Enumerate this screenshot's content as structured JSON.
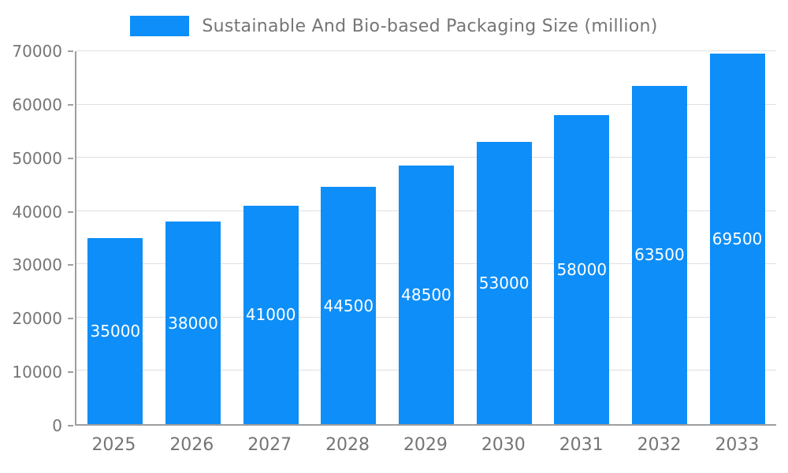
{
  "chart_data": {
    "type": "bar",
    "title": "Sustainable And Bio-based Packaging Size (million)",
    "categories": [
      "2025",
      "2026",
      "2027",
      "2028",
      "2029",
      "2030",
      "2031",
      "2032",
      "2033"
    ],
    "values": [
      35000,
      38000,
      41000,
      44500,
      48500,
      53000,
      58000,
      63500,
      69500
    ],
    "xlabel": "",
    "ylabel": "",
    "ylim": [
      0,
      70000
    ],
    "ytick_step": 10000,
    "yticks": [
      0,
      10000,
      20000,
      30000,
      40000,
      50000,
      60000,
      70000
    ],
    "grid": "horizontal",
    "legend_position": "top",
    "bar_color": "#0d8ef8",
    "bar_value_label_color": "#ffffff",
    "axis_text_color": "#757575",
    "gridline_color": "#e0e0e0",
    "axis_line_color": "#9e9e9e"
  }
}
